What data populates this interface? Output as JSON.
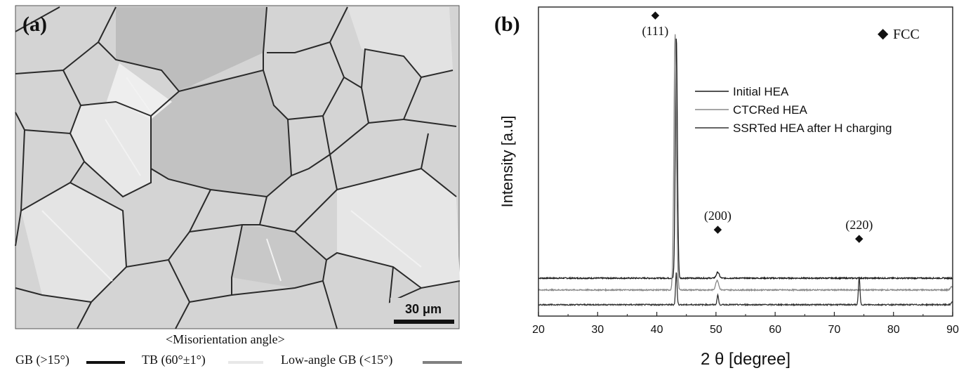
{
  "panel_a": {
    "label": "(a)",
    "scale_bar": "30 μm",
    "legend_title": "<Misorientation angle>",
    "legend_items": [
      {
        "label": "GB (>15°)",
        "color": "#111111"
      },
      {
        "label": "TB (60°±1°)",
        "color": "#e8e8e8"
      },
      {
        "label": "Low-angle GB (<15°)",
        "color": "#808080"
      }
    ],
    "colors": {
      "background": "#d9d9d9",
      "grain_boundary": "#333333"
    }
  },
  "chart_data": {
    "type": "line",
    "panel_label": "(b)",
    "xlabel": "2 θ [degree]",
    "ylabel": "Intensity [a.u]",
    "xlim": [
      20,
      90
    ],
    "x_ticks": [
      20,
      30,
      40,
      50,
      60,
      70,
      80,
      90
    ],
    "y_ticks": false,
    "grid": false,
    "legend_position": "upper-right",
    "phase_legend": "FCC",
    "peak_labels": [
      {
        "label": "(111)",
        "x": 43.3
      },
      {
        "label": "(200)",
        "x": 50.3
      },
      {
        "label": "(220)",
        "x": 74.2
      }
    ],
    "series": [
      {
        "name": "Initial HEA",
        "color": "#1a1a1a",
        "baseline": 0.3,
        "peaks": [
          {
            "x": 43.3,
            "height": 2.45,
            "width": 0.25
          },
          {
            "x": 50.3,
            "height": 0.06,
            "width": 0.35
          }
        ]
      },
      {
        "name": "CTCRed HEA",
        "color": "#888888",
        "baseline": 0.18,
        "peaks": [
          {
            "x": 43.1,
            "height": 2.6,
            "width": 0.3
          },
          {
            "x": 50.2,
            "height": 0.1,
            "width": 0.35
          },
          {
            "x": 89.8,
            "height": 0.03,
            "width": 0.3
          }
        ]
      },
      {
        "name": "SSRTed HEA after H charging",
        "color": "#333333",
        "baseline": 0.03,
        "peaks": [
          {
            "x": 43.3,
            "height": 0.33,
            "width": 0.18
          },
          {
            "x": 50.3,
            "height": 0.1,
            "width": 0.18
          },
          {
            "x": 74.2,
            "height": 0.28,
            "width": 0.18
          },
          {
            "x": 89.9,
            "height": 0.03,
            "width": 0.2
          }
        ]
      }
    ]
  }
}
